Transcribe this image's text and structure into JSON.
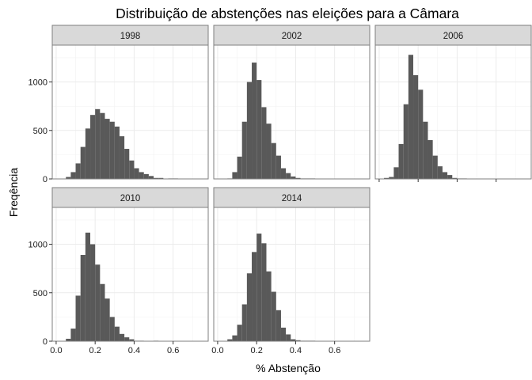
{
  "chart_data": {
    "type": "bar",
    "subtype": "faceted-histogram",
    "title": "Distribuição de abstenções nas eleições para a Câmara",
    "xlabel": "% Abstenção",
    "ylabel": "Freqência",
    "xlim": [
      -0.02,
      0.78
    ],
    "ylim": [
      0,
      1380
    ],
    "x_ticks": [
      {
        "value": 0.0,
        "label": "0.0"
      },
      {
        "value": 0.2,
        "label": "0.2"
      },
      {
        "value": 0.4,
        "label": "0.4"
      },
      {
        "value": 0.6,
        "label": "0.6"
      }
    ],
    "y_ticks": [
      {
        "value": 0,
        "label": "0"
      },
      {
        "value": 500,
        "label": "500"
      },
      {
        "value": 1000,
        "label": "1000"
      }
    ],
    "bin_width": 0.025,
    "bin_starts": [
      0.025,
      0.05,
      0.075,
      0.1,
      0.125,
      0.15,
      0.175,
      0.2,
      0.225,
      0.25,
      0.275,
      0.3,
      0.325,
      0.35,
      0.375,
      0.4,
      0.425,
      0.45,
      0.475,
      0.5,
      0.525,
      0.55,
      0.575,
      0.6,
      0.625
    ],
    "grid": true,
    "bar_color": "#595959",
    "panel_layout": "3 columns x 2 rows",
    "facets": [
      {
        "year": "1998",
        "values": [
          0,
          20,
          70,
          160,
          330,
          520,
          660,
          720,
          680,
          620,
          590,
          540,
          440,
          310,
          190,
          110,
          70,
          50,
          30,
          10,
          10,
          0,
          5,
          5,
          0
        ]
      },
      {
        "year": "2002",
        "values": [
          0,
          5,
          70,
          230,
          590,
          1000,
          1200,
          1020,
          740,
          570,
          370,
          240,
          110,
          60,
          25,
          10,
          5,
          5,
          5,
          0,
          0,
          0,
          0,
          0,
          0
        ]
      },
      {
        "year": "2006",
        "values": [
          10,
          20,
          120,
          360,
          770,
          1280,
          1070,
          920,
          590,
          400,
          240,
          130,
          70,
          40,
          10,
          5,
          5,
          0,
          0,
          0,
          0,
          0,
          0,
          0,
          0
        ]
      },
      {
        "year": "2010",
        "values": [
          0,
          25,
          130,
          470,
          890,
          1120,
          1000,
          790,
          590,
          440,
          250,
          150,
          75,
          40,
          20,
          5,
          5,
          0,
          0,
          5,
          0,
          0,
          0,
          0,
          0
        ]
      },
      {
        "year": "2014",
        "values": [
          0,
          20,
          60,
          170,
          380,
          700,
          920,
          1110,
          1010,
          720,
          510,
          320,
          140,
          70,
          20,
          10,
          5,
          5,
          5,
          0,
          0,
          0,
          0,
          0,
          0
        ]
      }
    ]
  }
}
